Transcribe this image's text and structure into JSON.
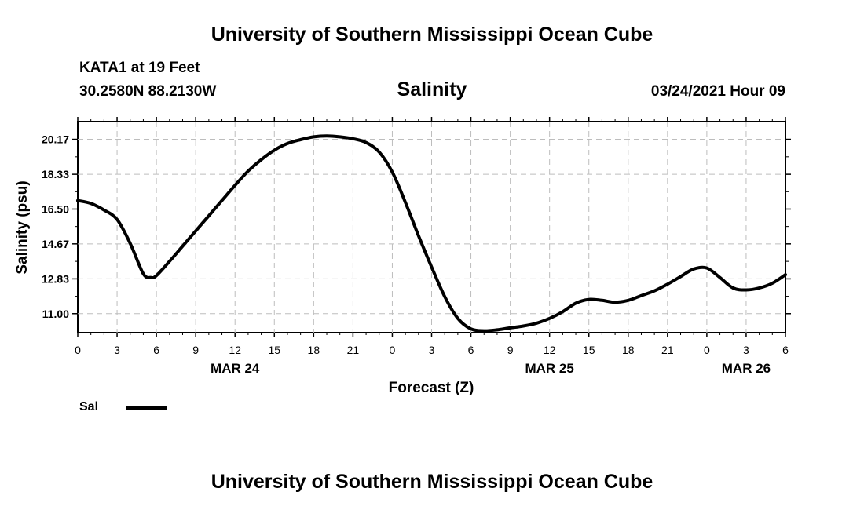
{
  "header": {
    "title_top": "University of Southern Mississippi Ocean Cube",
    "title_bottom": "University of Southern Mississippi Ocean Cube",
    "station": "KATA1 at 19 Feet",
    "coords": "30.2580N 88.2130W",
    "datetime": "03/24/2021 Hour 09"
  },
  "legend": {
    "label": "Sal",
    "color": "#000000"
  },
  "chart_data": {
    "type": "line",
    "title": "Salinity",
    "xlabel": "Forecast (Z)",
    "ylabel": "Salinity (psu)",
    "xlim": [
      0,
      54
    ],
    "ylim": [
      10.0,
      21.1
    ],
    "grid": true,
    "x_tick_values": [
      0,
      3,
      6,
      9,
      12,
      15,
      18,
      21,
      24,
      27,
      30,
      33,
      36,
      39,
      42,
      45,
      48,
      51,
      54
    ],
    "x_tick_labels": [
      "0",
      "3",
      "6",
      "9",
      "12",
      "15",
      "18",
      "21",
      "0",
      "3",
      "6",
      "9",
      "12",
      "15",
      "18",
      "21",
      "0",
      "3",
      "6"
    ],
    "y_ticks": [
      "11.00",
      "12.83",
      "14.67",
      "16.50",
      "18.33",
      "20.17"
    ],
    "date_labels": [
      {
        "x": 12,
        "label": "MAR 24"
      },
      {
        "x": 36,
        "label": "MAR 25"
      },
      {
        "x": 51,
        "label": "MAR 26"
      }
    ],
    "series": [
      {
        "name": "Sal",
        "x": [
          0,
          1,
          2,
          3,
          4,
          5,
          5.6,
          6,
          7,
          8,
          9,
          10,
          11,
          12,
          13,
          14,
          15,
          16,
          17,
          18,
          19,
          20,
          21,
          22,
          23,
          24,
          25,
          26,
          27,
          28,
          29,
          30,
          31,
          32,
          33,
          34,
          35,
          36,
          37,
          38,
          39,
          40,
          41,
          42,
          43,
          44,
          45,
          46,
          47,
          48,
          49,
          50,
          51,
          52,
          53,
          54
        ],
        "values": [
          16.95,
          16.8,
          16.45,
          15.95,
          14.7,
          13.1,
          12.9,
          13.0,
          13.75,
          14.55,
          15.35,
          16.15,
          16.95,
          17.75,
          18.5,
          19.1,
          19.6,
          19.95,
          20.15,
          20.3,
          20.35,
          20.3,
          20.2,
          20.0,
          19.5,
          18.45,
          16.85,
          15.1,
          13.45,
          11.9,
          10.75,
          10.2,
          10.1,
          10.15,
          10.25,
          10.35,
          10.5,
          10.75,
          11.1,
          11.55,
          11.75,
          11.7,
          11.6,
          11.7,
          11.95,
          12.2,
          12.55,
          12.95,
          13.35,
          13.4,
          12.9,
          12.35,
          12.25,
          12.35,
          12.6,
          13.05
        ]
      }
    ]
  }
}
